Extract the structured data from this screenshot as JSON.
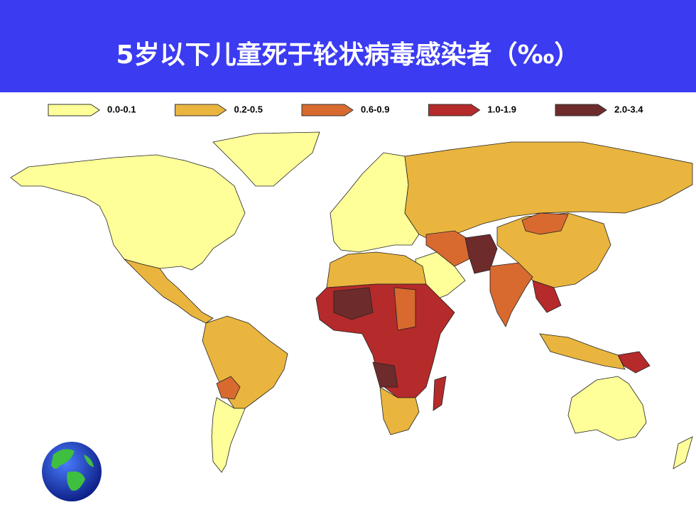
{
  "header": {
    "title": "5岁以下儿童死于轮状病毒感染者（‰）"
  },
  "legend": {
    "items": [
      {
        "label": "0.0-0.1",
        "color": "#ffff99"
      },
      {
        "label": "0.2-0.5",
        "color": "#e9b53e"
      },
      {
        "label": "0.6-0.9",
        "color": "#d86a30"
      },
      {
        "label": "1.0-1.9",
        "color": "#b52a2a"
      },
      {
        "label": "2.0-3.4",
        "color": "#6e2b2b"
      }
    ]
  }
}
